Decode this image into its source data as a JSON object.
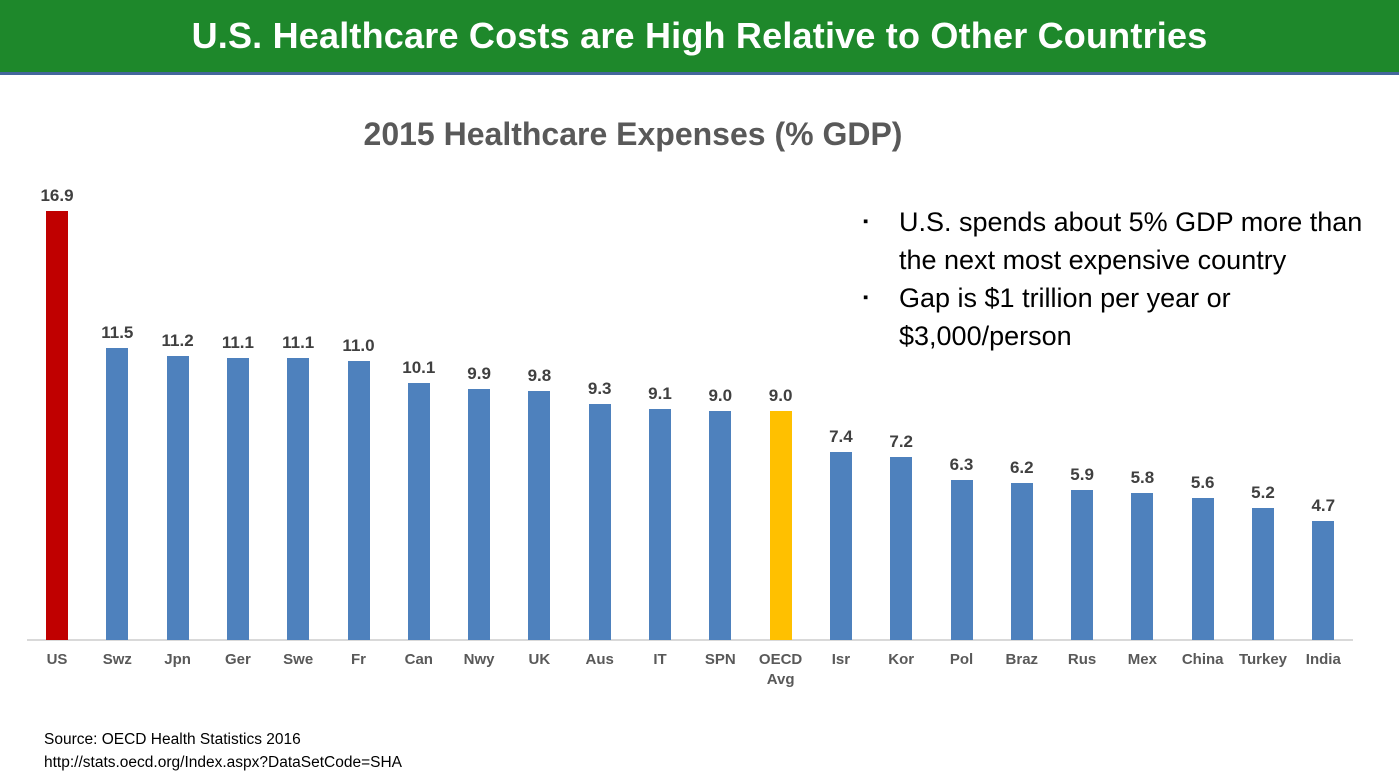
{
  "banner": {
    "title": "U.S. Healthcare Costs are High Relative to Other Countries",
    "bg_color": "#1E882B",
    "underline_color": "#44679B",
    "text_color": "#FFFFFF"
  },
  "chart_data": {
    "type": "bar",
    "title": "2015 Healthcare Expenses (% GDP)",
    "categories": [
      "US",
      "Swz",
      "Jpn",
      "Ger",
      "Swe",
      "Fr",
      "Can",
      "Nwy",
      "UK",
      "Aus",
      "IT",
      "SPN",
      "OECD Avg",
      "Isr",
      "Kor",
      "Pol",
      "Braz",
      "Rus",
      "Mex",
      "China",
      "Turkey",
      "India"
    ],
    "values": [
      16.9,
      11.5,
      11.2,
      11.1,
      11.1,
      11.0,
      10.1,
      9.9,
      9.8,
      9.3,
      9.1,
      9.0,
      9.0,
      7.4,
      7.2,
      6.3,
      6.2,
      5.9,
      5.8,
      5.6,
      5.2,
      4.7
    ],
    "colors": [
      "#C00000",
      "#4E81BD",
      "#4E81BD",
      "#4E81BD",
      "#4E81BD",
      "#4E81BD",
      "#4E81BD",
      "#4E81BD",
      "#4E81BD",
      "#4E81BD",
      "#4E81BD",
      "#4E81BD",
      "#FFC000",
      "#4E81BD",
      "#4E81BD",
      "#4E81BD",
      "#4E81BD",
      "#4E81BD",
      "#4E81BD",
      "#4E81BD",
      "#4E81BD",
      "#4E81BD"
    ],
    "bar_color_default": "#4E81BD",
    "highlights": {
      "US": "#C00000",
      "OECD Avg": "#FFC000"
    },
    "value_label_color": "#404040",
    "category_label_color": "#595959",
    "title_color": "#595959",
    "axis_line_color": "#D9D9D9",
    "ylim": [
      0,
      18
    ],
    "grid": false,
    "legend": false,
    "xlabel": "",
    "ylabel": ""
  },
  "annotations": {
    "bullets": [
      "U.S. spends about 5% GDP more than the next most expensive country",
      "Gap is $1 trillion per year or $3,000/person"
    ]
  },
  "source": {
    "line1": "Source:  OECD Health Statistics 2016",
    "line2": "http://stats.oecd.org/Index.aspx?DataSetCode=SHA"
  }
}
